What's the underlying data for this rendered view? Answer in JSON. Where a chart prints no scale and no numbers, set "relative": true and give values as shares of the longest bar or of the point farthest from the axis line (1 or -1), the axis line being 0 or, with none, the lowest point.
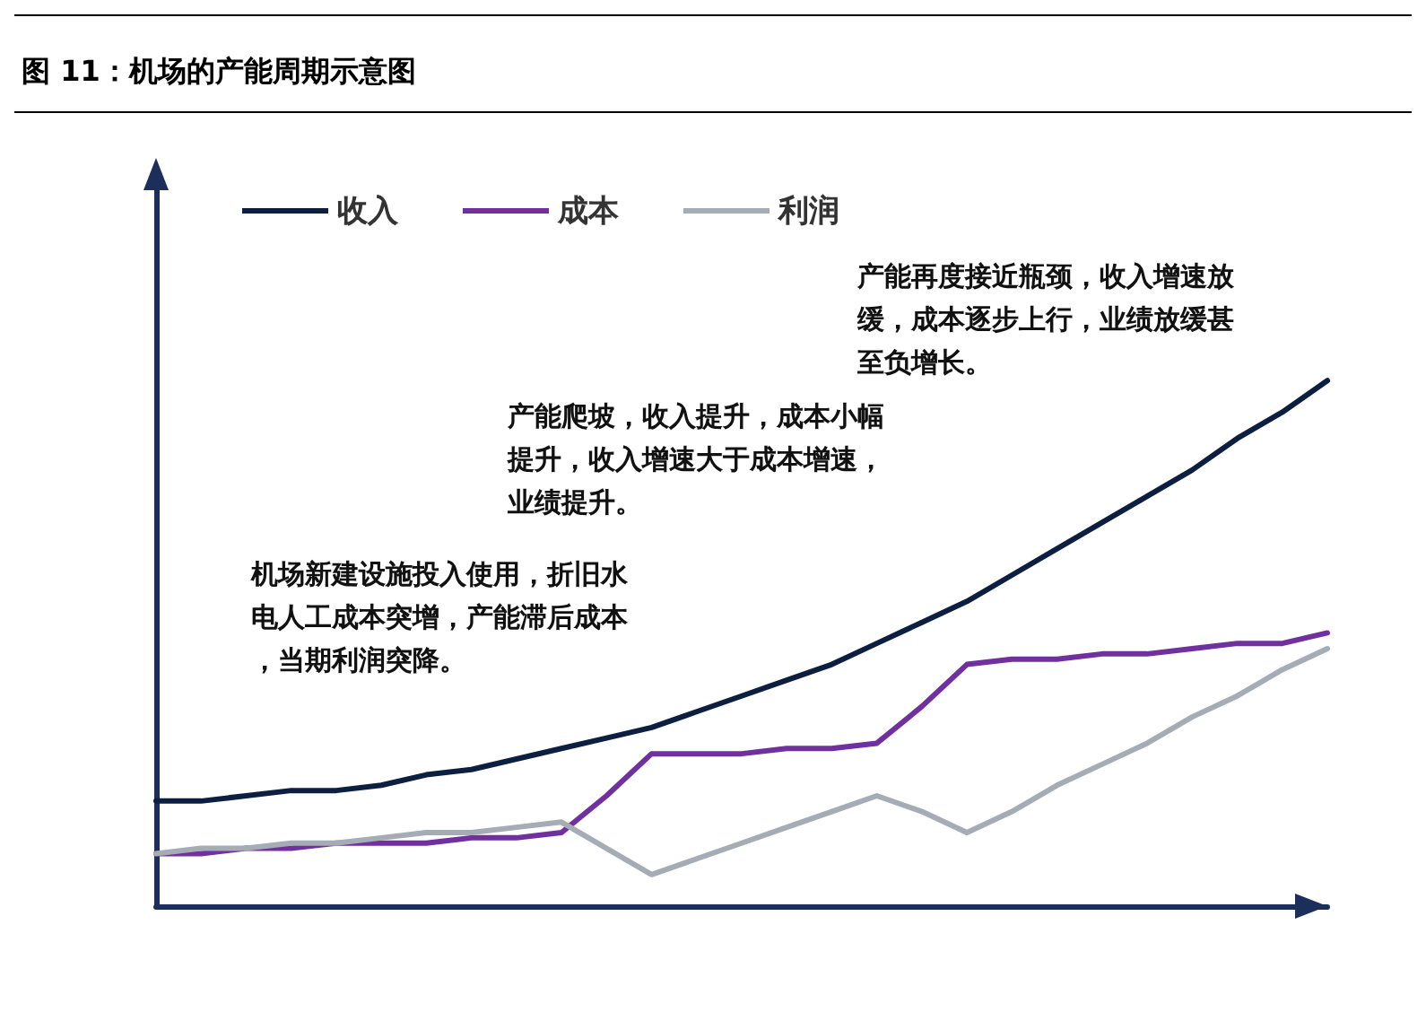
{
  "chart_data": {
    "type": "line",
    "title": "图 11：机场的产能周期示意图",
    "relative": true,
    "legend": "top left",
    "marker": "none",
    "line_style": "solid",
    "grid": false,
    "tick_labels": false,
    "categories": [
      null,
      null,
      null,
      null,
      null,
      null,
      null,
      null,
      null,
      null,
      null,
      null,
      null,
      null,
      null,
      null,
      null,
      null,
      null,
      null,
      null,
      null,
      null,
      null,
      null,
      null,
      null
    ],
    "series": [
      {
        "name": "收入",
        "color": "#0d1f40",
        "values": [
          0.2,
          0.2,
          0.21,
          0.22,
          0.22,
          0.23,
          0.25,
          0.26,
          0.28,
          0.3,
          0.32,
          0.34,
          0.37,
          0.4,
          0.43,
          0.46,
          0.5,
          0.54,
          0.58,
          0.63,
          0.68,
          0.73,
          0.78,
          0.83,
          0.89,
          0.94,
          1
        ]
      },
      {
        "name": "成本",
        "color": "#7030a0",
        "values": [
          0.1,
          0.1,
          0.11,
          0.11,
          0.12,
          0.12,
          0.12,
          0.13,
          0.13,
          0.14,
          0.21,
          0.29,
          0.29,
          0.29,
          0.3,
          0.3,
          0.31,
          0.38,
          0.46,
          0.47,
          0.47,
          0.48,
          0.48,
          0.49,
          0.5,
          0.5,
          0.52
        ]
      },
      {
        "name": "利润",
        "color": "#a6acb6",
        "values": [
          0.1,
          0.11,
          0.11,
          0.12,
          0.12,
          0.13,
          0.14,
          0.14,
          0.15,
          0.16,
          0.11,
          0.06,
          0.09,
          0.12,
          0.15,
          0.18,
          0.21,
          0.18,
          0.14,
          0.18,
          0.23,
          0.27,
          0.31,
          0.36,
          0.4,
          0.45,
          0.49
        ]
      }
    ],
    "annotations": [
      "机场新建设施投入使用，折旧水电人工成本突增，产能滞后成本，当期利润突降。",
      "产能爬坡，收入提升，成本小幅提升，收入增速大于成本增速，业绩提升。",
      "产能再度接近瓶颈，收入增速放缓，成本逐步上行，业绩放缓甚至负增长。"
    ]
  }
}
